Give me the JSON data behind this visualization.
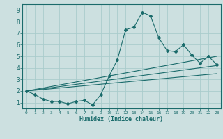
{
  "xlabel": "Humidex (Indice chaleur)",
  "bg_color": "#cce0e0",
  "grid_color": "#aacccc",
  "line_color": "#1a6b6b",
  "xlim": [
    -0.5,
    23.5
  ],
  "ylim": [
    0.5,
    9.5
  ],
  "xticks": [
    0,
    1,
    2,
    3,
    4,
    5,
    6,
    7,
    8,
    9,
    10,
    11,
    12,
    13,
    14,
    15,
    16,
    17,
    18,
    19,
    20,
    21,
    22,
    23
  ],
  "yticks": [
    1,
    2,
    3,
    4,
    5,
    6,
    7,
    8,
    9
  ],
  "main_line_x": [
    0,
    1,
    2,
    3,
    4,
    5,
    6,
    7,
    8,
    9,
    10,
    11,
    12,
    13,
    14,
    15,
    16,
    17,
    18,
    19,
    20,
    21,
    22,
    23
  ],
  "main_line_y": [
    2.0,
    1.7,
    1.3,
    1.1,
    1.1,
    0.9,
    1.1,
    1.2,
    0.8,
    1.7,
    3.3,
    4.7,
    7.3,
    7.5,
    8.8,
    8.5,
    6.6,
    5.5,
    5.4,
    6.0,
    5.1,
    4.4,
    5.0,
    4.3
  ],
  "trend1_x": [
    0,
    23
  ],
  "trend1_y": [
    2.0,
    5.0
  ],
  "trend2_x": [
    0,
    23
  ],
  "trend2_y": [
    2.0,
    4.2
  ],
  "trend3_x": [
    0,
    23
  ],
  "trend3_y": [
    2.0,
    3.5
  ]
}
